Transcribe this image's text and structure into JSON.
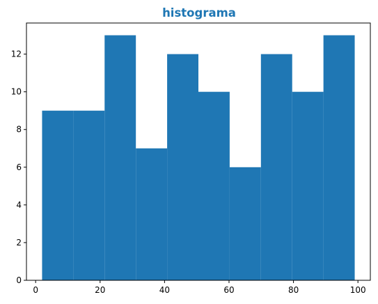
{
  "chart_data": {
    "type": "bar",
    "title": "histograma",
    "xlabel": "",
    "ylabel": "",
    "bin_edges": [
      2,
      11.7,
      21.4,
      31.1,
      40.8,
      50.5,
      60.2,
      69.9,
      79.6,
      89.3,
      99
    ],
    "values": [
      9,
      9,
      13,
      7,
      12,
      10,
      6,
      12,
      10,
      13
    ],
    "xlim": [
      -2.85,
      103.85
    ],
    "ylim": [
      0,
      13.65
    ],
    "x_ticks": [
      0,
      20,
      40,
      60,
      80,
      100
    ],
    "y_ticks": [
      0,
      2,
      4,
      6,
      8,
      10,
      12
    ],
    "grid": false,
    "legend": "none",
    "bar_color": "#1f77b4",
    "title_color": "#1f77b4"
  }
}
